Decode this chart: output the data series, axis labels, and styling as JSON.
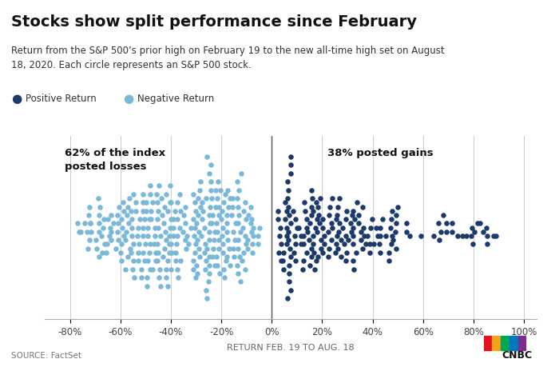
{
  "title": "Stocks show split performance since February",
  "subtitle": "Return from the S&P 500’s prior high on February 19 to the new all-time high set on August\n18, 2020. Each circle represents an S&P 500 stock.",
  "legend_positive": "Positive Return",
  "legend_negative": "Negative Return",
  "annotation_left": "62% of the index\nposted losses",
  "annotation_right": "38% posted gains",
  "xlabel": "RETURN FEB. 19 TO AUG. 18",
  "source": "SOURCE: FactSet",
  "xlim": [
    -0.9,
    1.05
  ],
  "ylim": [
    -11,
    11
  ],
  "color_positive": "#1b3a6b",
  "color_negative": "#7ab8d9",
  "background_color": "#ffffff",
  "top_bar_color": "#003087",
  "n_positive": 190,
  "n_negative": 310,
  "dot_size": 22,
  "seed": 42
}
